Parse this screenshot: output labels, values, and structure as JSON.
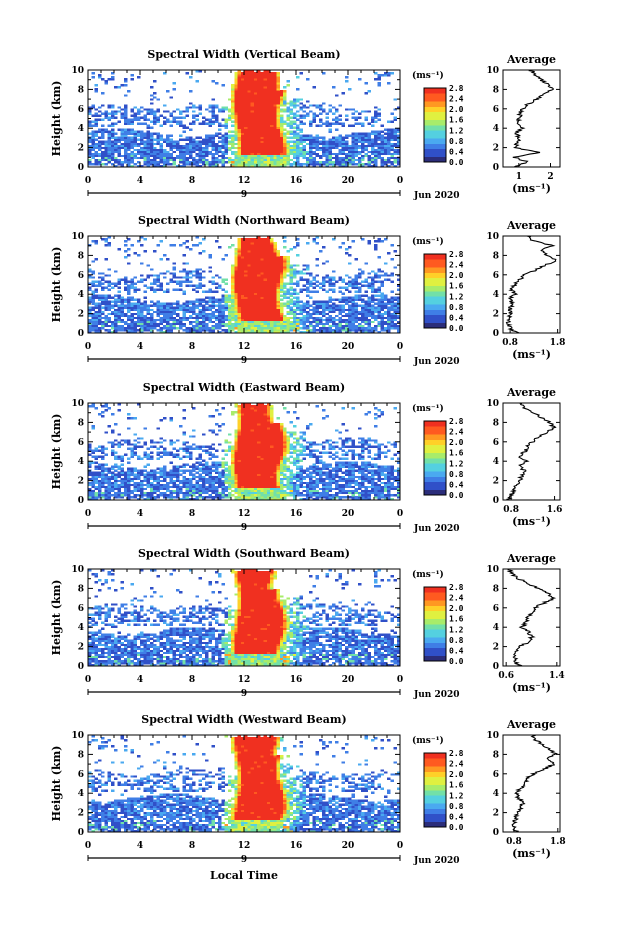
{
  "figure": {
    "xlabel_bottom": "Local Time",
    "colorbar_ticks": [
      "2.8",
      "2.4",
      "2.0",
      "1.6",
      "1.2",
      "0.8",
      "0.4",
      "0.0"
    ],
    "colorbar_range": [
      0.0,
      2.8
    ],
    "time_ticks": [
      "0",
      "4",
      "8",
      "12",
      "16",
      "20",
      "0"
    ],
    "height_ticks": [
      "0",
      "2",
      "4",
      "6",
      "8",
      "10"
    ],
    "colormap": [
      "#2b2d7a",
      "#3050c8",
      "#3f7ee6",
      "#4aa9f0",
      "#54d0e0",
      "#72e0a8",
      "#a8ec6a",
      "#e0f040",
      "#ffd028",
      "#ff9822",
      "#ff5a20",
      "#f03020"
    ]
  },
  "chart_data": [
    {
      "type": "heatmap",
      "title": "Spectral Width (Vertical Beam)",
      "ylabel": "Height (km)",
      "xlabel": "",
      "xlim": [
        0,
        24
      ],
      "ylim": [
        0,
        10
      ],
      "colorbar_label": "(ms⁻¹)",
      "date_label": "9",
      "month_label": "Jun 2020",
      "profile": {
        "title": "Average",
        "xlabel": "(ms⁻¹)",
        "xlim": [
          0.5,
          2.3
        ],
        "xticks": [
          "1",
          "2"
        ],
        "height": [
          0,
          0.5,
          1,
          1.5,
          2,
          2.5,
          3,
          3.5,
          4,
          4.5,
          5,
          5.5,
          6,
          6.5,
          7,
          7.5,
          8,
          8.5,
          9,
          9.5,
          10
        ],
        "values": [
          0.8,
          1.3,
          0.85,
          1.6,
          0.9,
          0.95,
          1.0,
          0.9,
          1.1,
          0.95,
          1.0,
          1.05,
          1.1,
          1.3,
          1.55,
          1.8,
          2.1,
          1.9,
          1.7,
          1.5,
          1.4
        ]
      }
    },
    {
      "type": "heatmap",
      "title": "Spectral Width (Northward Beam)",
      "ylabel": "Height (km)",
      "xlabel": "",
      "xlim": [
        0,
        24
      ],
      "ylim": [
        0,
        10
      ],
      "colorbar_label": "(ms⁻¹)",
      "date_label": "9",
      "month_label": "Jun 2020",
      "profile": {
        "title": "Average",
        "xlabel": "(ms⁻¹)",
        "xlim": [
          0.65,
          1.85
        ],
        "xticks": [
          "0.8",
          "1.8"
        ],
        "height": [
          0,
          0.5,
          1,
          1.5,
          2,
          2.5,
          3,
          3.5,
          4,
          4.5,
          5,
          5.5,
          6,
          6.5,
          7,
          7.5,
          8,
          8.5,
          9,
          9.5,
          10
        ],
        "values": [
          0.95,
          0.8,
          0.75,
          0.78,
          0.82,
          0.8,
          0.85,
          0.8,
          0.9,
          0.82,
          0.9,
          1.0,
          1.1,
          1.35,
          1.55,
          1.75,
          1.6,
          1.45,
          1.7,
          1.3,
          1.15
        ]
      }
    },
    {
      "type": "heatmap",
      "title": "Spectral Width (Eastward Beam)",
      "ylabel": "Height (km)",
      "xlabel": "",
      "xlim": [
        0,
        24
      ],
      "ylim": [
        0,
        10
      ],
      "colorbar_label": "(ms⁻¹)",
      "date_label": "9",
      "month_label": "Jun 2020",
      "profile": {
        "title": "Average",
        "xlabel": "(ms⁻¹)",
        "xlim": [
          0.65,
          1.7
        ],
        "xticks": [
          "0.8",
          "1.6"
        ],
        "height": [
          0,
          0.5,
          1,
          1.5,
          2,
          2.5,
          3,
          3.5,
          4,
          4.5,
          5,
          5.5,
          6,
          6.5,
          7,
          7.5,
          8,
          8.5,
          9,
          9.5,
          10
        ],
        "values": [
          0.75,
          0.8,
          0.85,
          0.9,
          0.95,
          1.0,
          1.05,
          0.95,
          1.1,
          0.95,
          1.05,
          1.1,
          1.2,
          1.3,
          1.45,
          1.6,
          1.5,
          1.35,
          1.2,
          1.05,
          0.95
        ]
      }
    },
    {
      "type": "heatmap",
      "title": "Spectral Width (Southward Beam)",
      "ylabel": "Height (km)",
      "xlabel": "",
      "xlim": [
        0,
        24
      ],
      "ylim": [
        0,
        10
      ],
      "colorbar_label": "(ms⁻¹)",
      "date_label": "9",
      "month_label": "Jun 2020",
      "profile": {
        "title": "Average",
        "xlabel": "(ms⁻¹)",
        "xlim": [
          0.55,
          1.45
        ],
        "xticks": [
          "0.6",
          "1.4"
        ],
        "height": [
          0,
          0.5,
          1,
          1.5,
          2,
          2.5,
          3,
          3.5,
          4,
          4.5,
          5,
          5.5,
          6,
          6.5,
          7,
          7.5,
          8,
          8.5,
          9,
          9.5,
          10
        ],
        "values": [
          0.8,
          0.75,
          0.72,
          0.75,
          0.82,
          0.95,
          1.0,
          0.95,
          0.85,
          0.9,
          0.95,
          1.0,
          1.05,
          1.2,
          1.35,
          1.25,
          1.1,
          0.95,
          0.8,
          0.7,
          0.65
        ]
      }
    },
    {
      "type": "heatmap",
      "title": "Spectral Width (Westward Beam)",
      "ylabel": "Height (km)",
      "xlabel": "",
      "xlim": [
        0,
        24
      ],
      "ylim": [
        0,
        10
      ],
      "colorbar_label": "(ms⁻¹)",
      "date_label": "9",
      "month_label": "Jun 2020",
      "profile": {
        "title": "Average",
        "xlabel": "(ms⁻¹)",
        "xlim": [
          0.55,
          1.85
        ],
        "xticks": [
          "0.8",
          "1.8"
        ],
        "height": [
          0,
          0.5,
          1,
          1.5,
          2,
          2.5,
          3,
          3.5,
          4,
          4.5,
          5,
          5.5,
          6,
          6.5,
          7,
          7.5,
          8,
          8.5,
          9,
          9.5,
          10
        ],
        "values": [
          0.85,
          0.8,
          0.82,
          0.85,
          0.9,
          0.95,
          1.0,
          0.9,
          0.85,
          0.95,
          1.05,
          1.1,
          1.25,
          1.5,
          1.7,
          1.55,
          1.75,
          1.6,
          1.45,
          1.3,
          1.2
        ]
      }
    }
  ]
}
